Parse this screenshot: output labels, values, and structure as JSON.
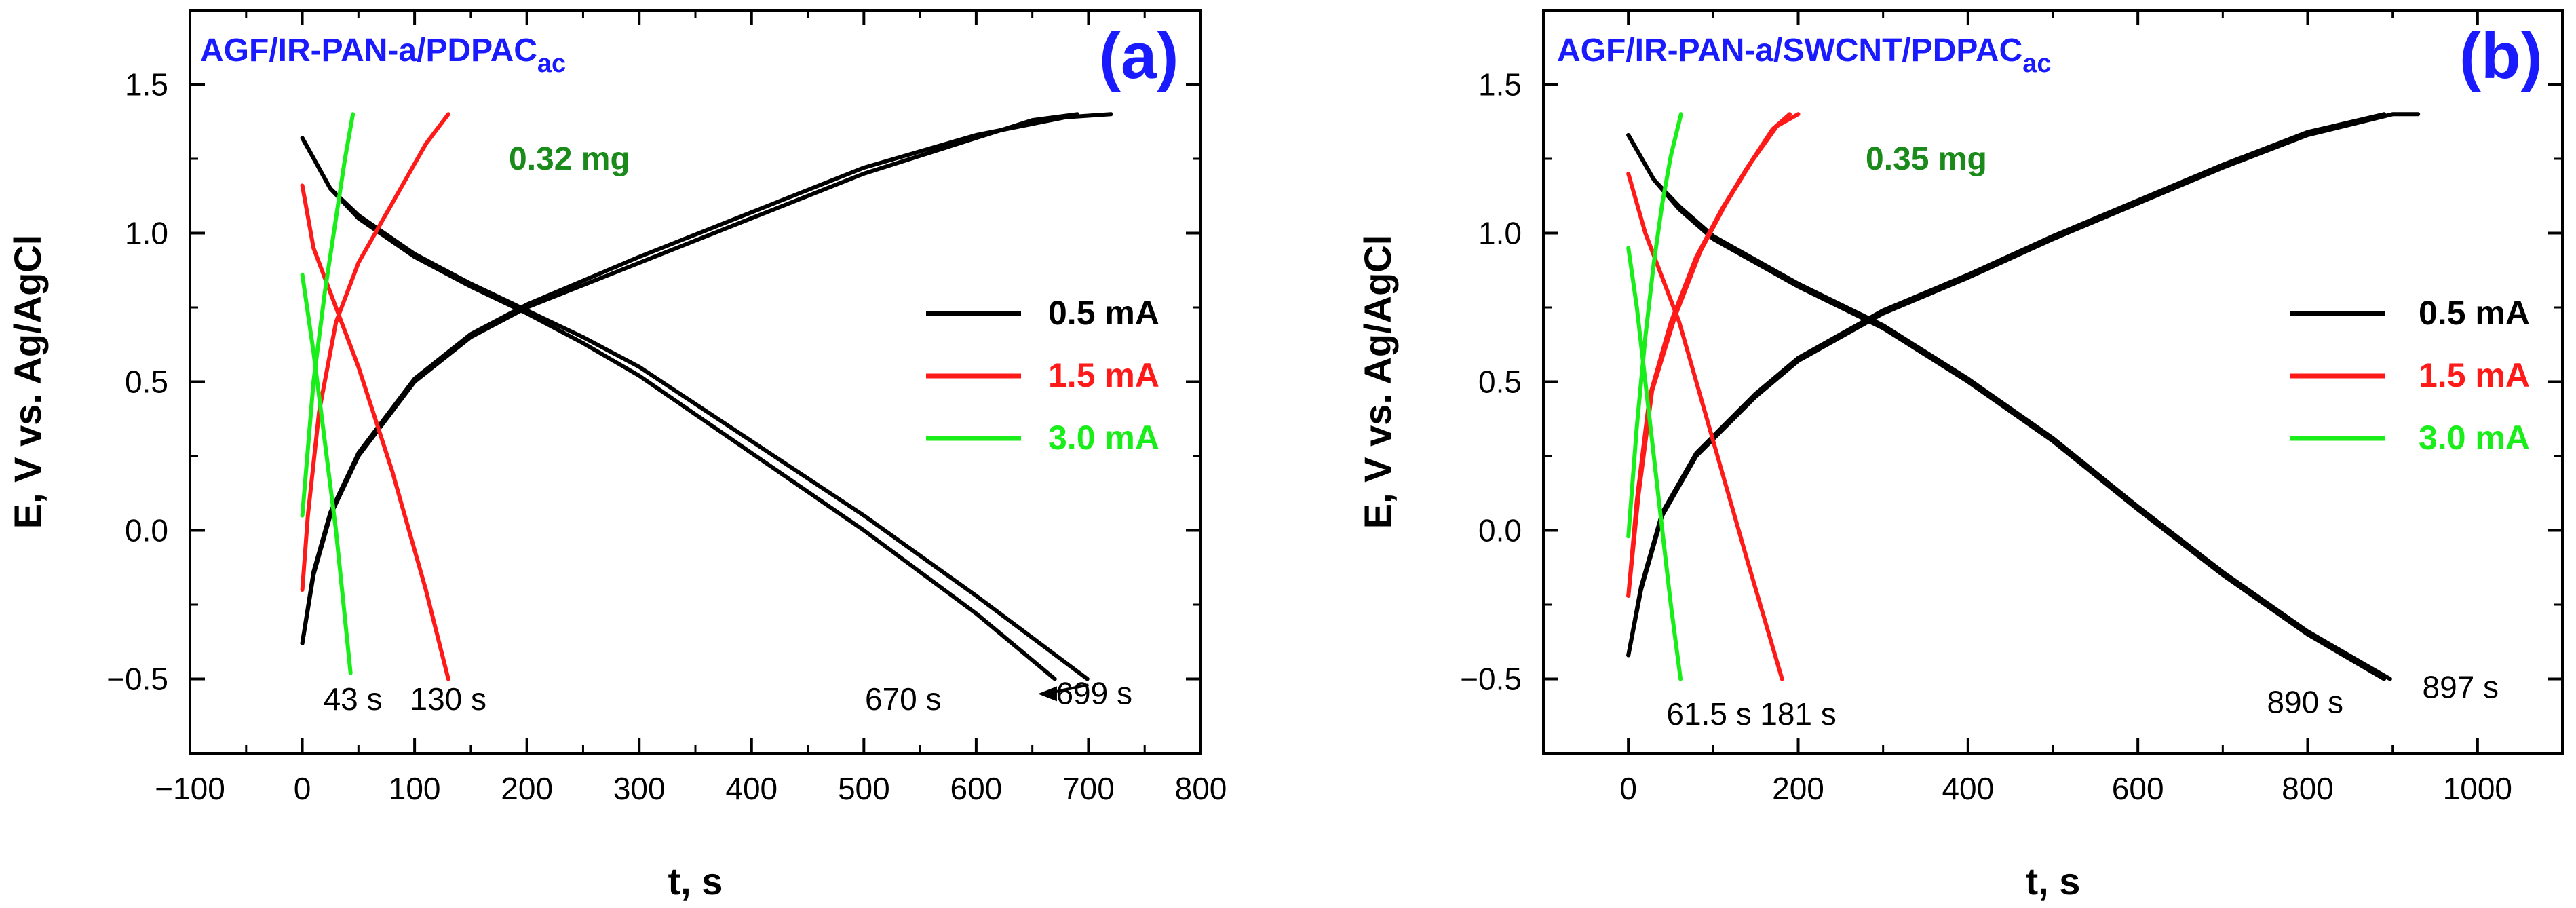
{
  "chart_data": [
    {
      "type": "line",
      "panel": "(a)",
      "title": "AGF/IR-PAN-a/PDPAC",
      "title_subscript": "ac",
      "mass_label": "0.32 mg",
      "xlabel": "t, s",
      "ylabel": "E, V vs. Ag/AgCl",
      "xlim": [
        -100,
        800
      ],
      "ylim": [
        -0.75,
        1.75
      ],
      "xticks": [
        -100,
        0,
        100,
        200,
        300,
        400,
        500,
        600,
        700,
        800
      ],
      "xtick_labels": [
        "−100",
        "0",
        "100",
        "200",
        "300",
        "400",
        "500",
        "600",
        "700",
        "800"
      ],
      "yticks": [
        -0.5,
        0.0,
        0.5,
        1.0,
        1.5
      ],
      "ytick_labels": [
        "−0.5",
        "0.0",
        "0.5",
        "1.0",
        "1.5"
      ],
      "legend": [
        {
          "label": "0.5 mA",
          "color": "#000000"
        },
        {
          "label": "1.5 mA",
          "color": "#ff1a1a"
        },
        {
          "label": "3.0 mA",
          "color": "#1aee1a"
        }
      ],
      "series": [
        {
          "name": "0.5 mA charge 1",
          "color": "#000000",
          "x": [
            0,
            10,
            25,
            50,
            100,
            150,
            200,
            300,
            400,
            500,
            600,
            650,
            690
          ],
          "y": [
            -0.38,
            -0.15,
            0.05,
            0.25,
            0.5,
            0.65,
            0.75,
            0.9,
            1.05,
            1.2,
            1.32,
            1.38,
            1.4
          ]
        },
        {
          "name": "0.5 mA charge 2",
          "color": "#000000",
          "x": [
            0,
            10,
            25,
            50,
            100,
            150,
            200,
            300,
            400,
            500,
            600,
            680,
            720
          ],
          "y": [
            -0.38,
            -0.14,
            0.06,
            0.26,
            0.51,
            0.66,
            0.76,
            0.92,
            1.07,
            1.22,
            1.33,
            1.39,
            1.4
          ]
        },
        {
          "name": "0.5 mA discharge 1",
          "color": "#000000",
          "x": [
            0,
            25,
            50,
            100,
            150,
            200,
            250,
            300,
            400,
            500,
            600,
            670
          ],
          "y": [
            1.32,
            1.15,
            1.05,
            0.92,
            0.82,
            0.73,
            0.63,
            0.52,
            0.26,
            0.0,
            -0.28,
            -0.5
          ]
        },
        {
          "name": "0.5 mA discharge 2",
          "color": "#000000",
          "x": [
            0,
            25,
            50,
            100,
            150,
            200,
            250,
            300,
            400,
            500,
            600,
            699
          ],
          "y": [
            1.32,
            1.15,
            1.06,
            0.93,
            0.83,
            0.74,
            0.65,
            0.55,
            0.3,
            0.05,
            -0.22,
            -0.5
          ]
        },
        {
          "name": "1.5 mA charge",
          "color": "#ff1a1a",
          "x": [
            0,
            5,
            15,
            30,
            50,
            80,
            110,
            130
          ],
          "y": [
            -0.2,
            0.05,
            0.4,
            0.7,
            0.9,
            1.1,
            1.3,
            1.4
          ]
        },
        {
          "name": "1.5 mA discharge",
          "color": "#ff1a1a",
          "x": [
            0,
            10,
            25,
            50,
            80,
            110,
            130
          ],
          "y": [
            1.16,
            0.95,
            0.8,
            0.55,
            0.2,
            -0.2,
            -0.5
          ]
        },
        {
          "name": "3.0 mA charge",
          "color": "#1aee1a",
          "x": [
            0,
            10,
            20,
            30,
            38,
            45
          ],
          "y": [
            0.05,
            0.5,
            0.8,
            1.05,
            1.25,
            1.4
          ]
        },
        {
          "name": "3.0 mA discharge",
          "color": "#1aee1a",
          "x": [
            0,
            10,
            20,
            30,
            43
          ],
          "y": [
            0.86,
            0.6,
            0.3,
            0.0,
            -0.48
          ]
        }
      ],
      "annotations": [
        {
          "text": "43 s",
          "x": 45,
          "y": -0.57
        },
        {
          "text": "130 s",
          "x": 130,
          "y": -0.57
        },
        {
          "text": "670 s",
          "x": 535,
          "y": -0.57
        },
        {
          "text": "699 s",
          "x": 705,
          "y": -0.55
        }
      ],
      "arrow": {
        "from_x": 700,
        "from_y": -0.52,
        "to_x": 655,
        "to_y": -0.55
      }
    },
    {
      "type": "line",
      "panel": "(b)",
      "title": "AGF/IR-PAN-a/SWCNT/PDPAC",
      "title_subscript": "ac",
      "mass_label": "0.35 mg",
      "xlabel": "t, s",
      "ylabel": "E, V vs. Ag/AgCl",
      "xlim": [
        -100,
        1100
      ],
      "ylim": [
        -0.75,
        1.75
      ],
      "xticks": [
        0,
        200,
        400,
        600,
        800,
        1000
      ],
      "xtick_labels": [
        "0",
        "200",
        "400",
        "600",
        "800",
        "1000"
      ],
      "yticks": [
        -0.5,
        0.0,
        0.5,
        1.0,
        1.5
      ],
      "ytick_labels": [
        "−0.5",
        "0.0",
        "0.5",
        "1.0",
        "1.5"
      ],
      "legend": [
        {
          "label": "0.5 mA",
          "color": "#000000"
        },
        {
          "label": "1.5 mA",
          "color": "#ff1a1a"
        },
        {
          "label": "3.0 mA",
          "color": "#1aee1a"
        }
      ],
      "series": [
        {
          "name": "0.5 mA charge 1",
          "color": "#000000",
          "x": [
            0,
            15,
            40,
            80,
            150,
            200,
            300,
            400,
            500,
            600,
            700,
            800,
            900,
            930
          ],
          "y": [
            -0.42,
            -0.2,
            0.05,
            0.25,
            0.45,
            0.57,
            0.73,
            0.85,
            0.98,
            1.1,
            1.22,
            1.33,
            1.4,
            1.4
          ]
        },
        {
          "name": "0.5 mA charge 2",
          "color": "#000000",
          "x": [
            0,
            15,
            40,
            80,
            150,
            200,
            300,
            400,
            500,
            600,
            700,
            800,
            890
          ],
          "y": [
            -0.42,
            -0.19,
            0.06,
            0.26,
            0.46,
            0.58,
            0.74,
            0.86,
            0.99,
            1.11,
            1.23,
            1.34,
            1.4
          ]
        },
        {
          "name": "0.5 mA discharge 1",
          "color": "#000000",
          "x": [
            0,
            30,
            60,
            100,
            200,
            300,
            400,
            500,
            600,
            700,
            800,
            890
          ],
          "y": [
            1.33,
            1.18,
            1.08,
            0.98,
            0.82,
            0.68,
            0.5,
            0.3,
            0.07,
            -0.15,
            -0.35,
            -0.5
          ]
        },
        {
          "name": "0.5 mA discharge 2",
          "color": "#000000",
          "x": [
            0,
            30,
            60,
            100,
            200,
            300,
            400,
            500,
            600,
            700,
            800,
            897
          ],
          "y": [
            1.33,
            1.18,
            1.09,
            0.99,
            0.83,
            0.69,
            0.51,
            0.31,
            0.08,
            -0.14,
            -0.34,
            -0.5
          ]
        },
        {
          "name": "1.5 mA charge 1",
          "color": "#ff1a1a",
          "x": [
            0,
            10,
            25,
            50,
            80,
            110,
            140,
            170,
            190
          ],
          "y": [
            -0.22,
            0.1,
            0.45,
            0.7,
            0.92,
            1.08,
            1.22,
            1.35,
            1.4
          ]
        },
        {
          "name": "1.5 mA charge 2",
          "color": "#ff1a1a",
          "x": [
            0,
            12,
            28,
            55,
            85,
            115,
            145,
            175,
            200
          ],
          "y": [
            -0.22,
            0.12,
            0.47,
            0.72,
            0.94,
            1.1,
            1.24,
            1.36,
            1.4
          ]
        },
        {
          "name": "1.5 mA discharge",
          "color": "#ff1a1a",
          "x": [
            0,
            20,
            40,
            60,
            100,
            140,
            181
          ],
          "y": [
            1.2,
            1.0,
            0.85,
            0.7,
            0.3,
            -0.1,
            -0.5
          ]
        },
        {
          "name": "3.0 mA charge",
          "color": "#1aee1a",
          "x": [
            0,
            10,
            20,
            30,
            40,
            50,
            62
          ],
          "y": [
            -0.02,
            0.35,
            0.65,
            0.9,
            1.1,
            1.26,
            1.4
          ]
        },
        {
          "name": "3.0 mA discharge",
          "color": "#1aee1a",
          "x": [
            0,
            10,
            20,
            30,
            40,
            50,
            61.5
          ],
          "y": [
            0.95,
            0.75,
            0.5,
            0.25,
            0.0,
            -0.25,
            -0.5
          ]
        }
      ],
      "annotations": [
        {
          "text": "61.5 s",
          "x": 95,
          "y": -0.62
        },
        {
          "text": "181 s",
          "x": 200,
          "y": -0.62
        },
        {
          "text": "890 s",
          "x": 797,
          "y": -0.58
        },
        {
          "text": "897 s",
          "x": 980,
          "y": -0.53
        }
      ],
      "arrow": null
    }
  ]
}
